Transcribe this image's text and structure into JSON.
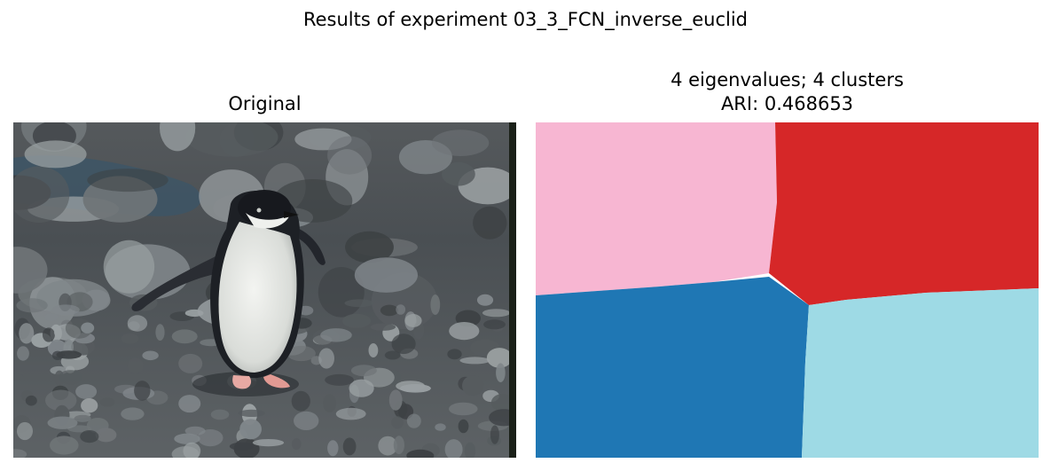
{
  "figure": {
    "suptitle": "Results of experiment 03_3_FCN_inverse_euclid"
  },
  "chart_data": [
    {
      "type": "image",
      "title": "Original",
      "description_colors": {
        "rocks_dark": "#3d4144",
        "rocks_mid": "#6f7477",
        "rocks_light": "#9aa0a2",
        "shadow_blue": "#3c5566",
        "penguin_black": "#1b1d22",
        "penguin_white": "#e9ebe8",
        "feet_pink": "#e7a9a3"
      }
    },
    {
      "type": "heatmap",
      "title_line1": "4 eigenvalues; 4 clusters",
      "title_line2": "ARI: 0.468653",
      "n_clusters": 4,
      "ari": 0.468653,
      "clusters": [
        {
          "id": 0,
          "region": "top-left",
          "color": "#f7b6d2"
        },
        {
          "id": 1,
          "region": "top-right",
          "color": "#d62728"
        },
        {
          "id": 2,
          "region": "bottom-left",
          "color": "#1f77b4"
        },
        {
          "id": 3,
          "region": "bottom-right",
          "color": "#9edae5"
        }
      ]
    }
  ]
}
